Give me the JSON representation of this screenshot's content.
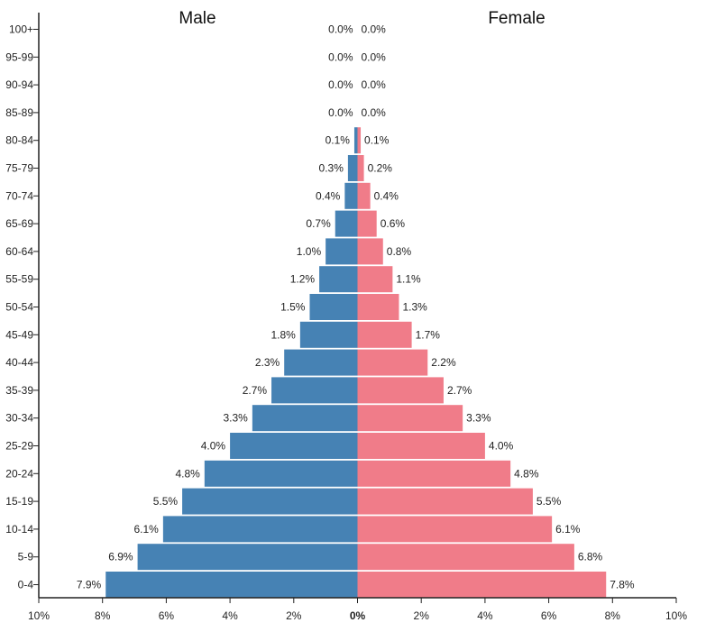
{
  "chart_data": {
    "type": "bar",
    "orientation": "horizontal",
    "legend": [
      "Male",
      "Female"
    ],
    "categories": [
      "0-4",
      "5-9",
      "10-14",
      "15-19",
      "20-24",
      "25-29",
      "30-34",
      "35-39",
      "40-44",
      "45-49",
      "50-54",
      "55-59",
      "60-64",
      "65-69",
      "70-74",
      "75-79",
      "80-84",
      "85-89",
      "90-94",
      "95-99",
      "100+"
    ],
    "series": [
      {
        "name": "Male",
        "color": "#4682b4",
        "values": [
          7.9,
          6.9,
          6.1,
          5.5,
          4.8,
          4.0,
          3.3,
          2.7,
          2.3,
          1.8,
          1.5,
          1.2,
          1.0,
          0.7,
          0.4,
          0.3,
          0.1,
          0.0,
          0.0,
          0.0,
          0.0
        ],
        "labels": [
          "7.9%",
          "6.9%",
          "6.1%",
          "5.5%",
          "4.8%",
          "4.0%",
          "3.3%",
          "2.7%",
          "2.3%",
          "1.8%",
          "1.5%",
          "1.2%",
          "1.0%",
          "0.7%",
          "0.4%",
          "0.3%",
          "0.1%",
          "0.0%",
          "0.0%",
          "0.0%",
          "0.0%"
        ]
      },
      {
        "name": "Female",
        "color": "#f07c89",
        "values": [
          7.8,
          6.8,
          6.1,
          5.5,
          4.8,
          4.0,
          3.3,
          2.7,
          2.2,
          1.7,
          1.3,
          1.1,
          0.8,
          0.6,
          0.4,
          0.2,
          0.1,
          0.0,
          0.0,
          0.0,
          0.0
        ],
        "labels": [
          "7.8%",
          "6.8%",
          "6.1%",
          "5.5%",
          "4.8%",
          "4.0%",
          "3.3%",
          "2.7%",
          "2.2%",
          "1.7%",
          "1.3%",
          "1.1%",
          "0.8%",
          "0.6%",
          "0.4%",
          "0.2%",
          "0.1%",
          "0.0%",
          "0.0%",
          "0.0%",
          "0.0%"
        ]
      }
    ],
    "x_ticks": [
      "10%",
      "8%",
      "6%",
      "4%",
      "2%",
      "0%",
      "2%",
      "4%",
      "6%",
      "8%",
      "10%"
    ],
    "xlim": [
      -10,
      10
    ],
    "grid": false,
    "legend_placement": "top"
  }
}
